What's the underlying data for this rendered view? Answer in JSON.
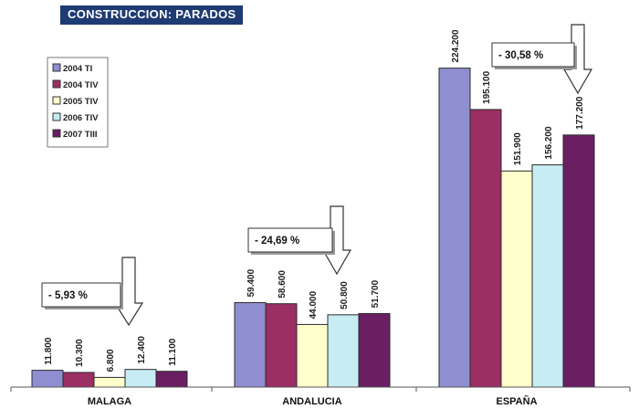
{
  "chart_data": {
    "type": "bar",
    "title": "CONSTRUCCION: PARADOS",
    "categories": [
      "MALAGA",
      "ANDALUCIA",
      "ESPAÑA"
    ],
    "series": [
      {
        "name": "2004 TI",
        "color": "#8e8ed0",
        "values": [
          11800,
          59400,
          224200
        ],
        "labels": [
          "11.800",
          "59.400",
          "224.200"
        ]
      },
      {
        "name": "2004 TIV",
        "color": "#9b2e62",
        "values": [
          10300,
          58600,
          195100
        ],
        "labels": [
          "10.300",
          "58.600",
          "195.100"
        ]
      },
      {
        "name": "2005 TIV",
        "color": "#ffffcc",
        "values": [
          6800,
          44000,
          151900
        ],
        "labels": [
          "6.800",
          "44.000",
          "151.900"
        ]
      },
      {
        "name": "2006 TIV",
        "color": "#c8ecf4",
        "values": [
          12400,
          50800,
          156200
        ],
        "labels": [
          "12.400",
          "50.800",
          "156.200"
        ]
      },
      {
        "name": "2007 TIII",
        "color": "#6a1f62",
        "values": [
          11100,
          51700,
          177200
        ],
        "labels": [
          "11.100",
          "51.700",
          "177.200"
        ]
      }
    ],
    "annotations": [
      "- 5,93 %",
      "- 24,69 %",
      "- 30,58 %"
    ],
    "legend": "top-left",
    "grid": false
  }
}
